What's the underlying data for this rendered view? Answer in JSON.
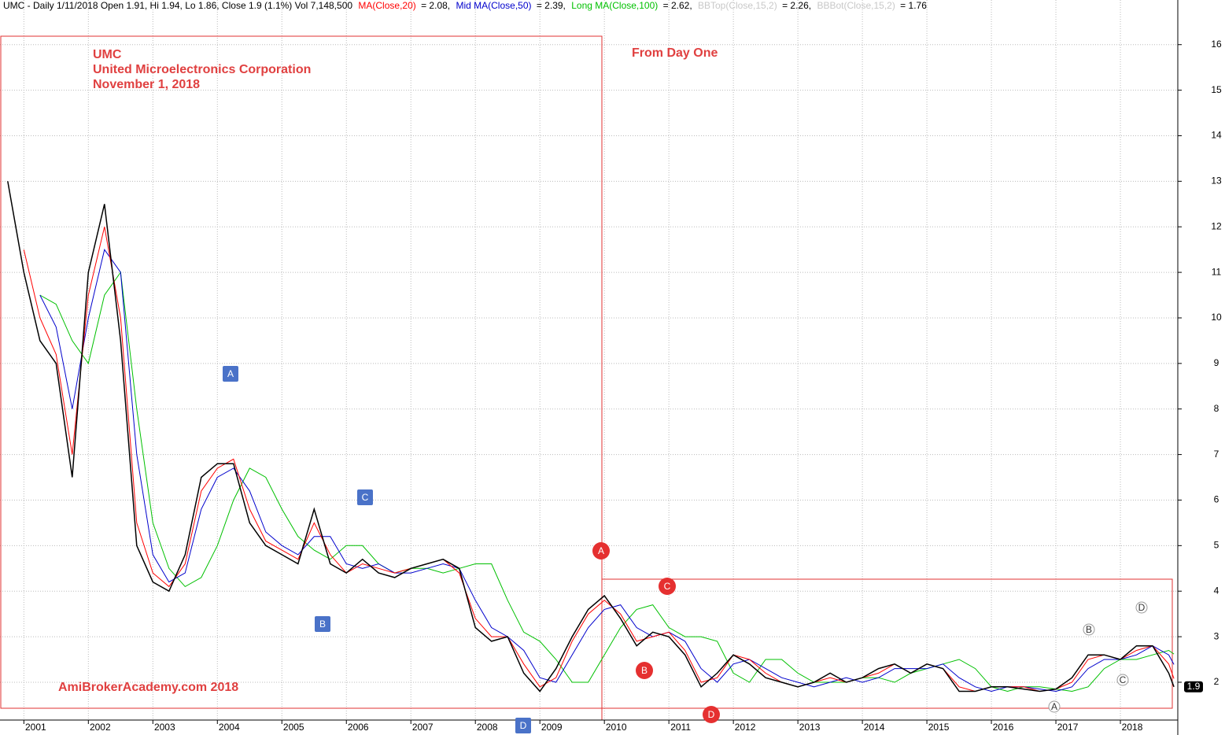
{
  "chart_data": {
    "type": "line",
    "header": "UMC - Daily 1/11/2018 Open 1.91, Hi 1.94, Lo 1.86, Close 1.9 (1.1%) Vol 7,148,500",
    "title": [
      "UMC",
      "United Microelectronics Corporation",
      "November 1, 2018"
    ],
    "subtitle": "From Day One",
    "watermark": "AmiBrokerAcademy.com  2018",
    "x": [
      2000.75,
      2001.0,
      2001.25,
      2001.5,
      2001.75,
      2002.0,
      2002.25,
      2002.5,
      2002.75,
      2003.0,
      2003.25,
      2003.5,
      2003.75,
      2004.0,
      2004.25,
      2004.5,
      2004.75,
      2005.0,
      2005.25,
      2005.5,
      2005.75,
      2006.0,
      2006.25,
      2006.5,
      2006.75,
      2007.0,
      2007.25,
      2007.5,
      2007.75,
      2008.0,
      2008.25,
      2008.5,
      2008.75,
      2009.0,
      2009.25,
      2009.5,
      2009.75,
      2010.0,
      2010.25,
      2010.5,
      2010.75,
      2011.0,
      2011.25,
      2011.5,
      2011.75,
      2012.0,
      2012.25,
      2012.5,
      2012.75,
      2013.0,
      2013.25,
      2013.5,
      2013.75,
      2014.0,
      2014.25,
      2014.5,
      2014.75,
      2015.0,
      2015.25,
      2015.5,
      2015.75,
      2016.0,
      2016.25,
      2016.5,
      2016.75,
      2017.0,
      2017.25,
      2017.5,
      2017.75,
      2018.0,
      2018.25,
      2018.5,
      2018.75,
      2018.83
    ],
    "series": [
      {
        "color": "#000000",
        "values": [
          13,
          11,
          9.5,
          9.0,
          6.5,
          11,
          12.5,
          9.5,
          5,
          4.2,
          4.0,
          4.8,
          6.5,
          6.8,
          6.8,
          5.5,
          5.0,
          4.8,
          4.6,
          5.8,
          4.6,
          4.4,
          4.7,
          4.4,
          4.3,
          4.5,
          4.6,
          4.7,
          4.5,
          3.2,
          2.9,
          3.0,
          2.2,
          1.8,
          2.3,
          3.0,
          3.6,
          3.9,
          3.4,
          2.8,
          3.1,
          3.0,
          2.6,
          1.9,
          2.2,
          2.6,
          2.4,
          2.1,
          2.0,
          1.9,
          2.0,
          2.2,
          2.0,
          2.1,
          2.3,
          2.4,
          2.2,
          2.4,
          2.3,
          1.8,
          1.8,
          1.9,
          1.9,
          1.85,
          1.8,
          1.85,
          2.1,
          2.6,
          2.6,
          2.5,
          2.8,
          2.8,
          2.2,
          1.9
        ]
      },
      {
        "name": "MA(Close,20)",
        "header_value": "= 2.08,",
        "color": "#ff0000",
        "values": [
          null,
          11.5,
          10,
          9.2,
          7,
          10.5,
          12,
          10,
          5.5,
          4.4,
          4.1,
          4.6,
          6.2,
          6.7,
          6.9,
          5.8,
          5.1,
          4.9,
          4.7,
          5.5,
          4.8,
          4.4,
          4.6,
          4.5,
          4.4,
          4.5,
          4.6,
          4.7,
          4.4,
          3.4,
          3.0,
          3.0,
          2.4,
          1.9,
          2.1,
          2.9,
          3.5,
          3.8,
          3.5,
          2.9,
          3.0,
          3.1,
          2.7,
          2.0,
          2.1,
          2.6,
          2.5,
          2.2,
          2.0,
          1.9,
          2.0,
          2.1,
          2.0,
          2.1,
          2.2,
          2.4,
          2.2,
          2.4,
          2.3,
          1.9,
          1.8,
          1.9,
          1.9,
          1.9,
          1.8,
          1.85,
          2.0,
          2.5,
          2.6,
          2.5,
          2.7,
          2.8,
          2.4,
          2.08
        ]
      },
      {
        "name": "Mid MA(Close,50)",
        "header_value": "= 2.39,",
        "color": "#0000cc",
        "values": [
          null,
          null,
          10.5,
          9.8,
          8,
          10,
          11.5,
          11,
          7,
          4.8,
          4.2,
          4.4,
          5.8,
          6.5,
          6.7,
          6.2,
          5.3,
          5.0,
          4.8,
          5.2,
          5.2,
          4.6,
          4.5,
          4.6,
          4.4,
          4.4,
          4.5,
          4.6,
          4.5,
          3.8,
          3.2,
          3.0,
          2.7,
          2.1,
          2.0,
          2.6,
          3.2,
          3.6,
          3.7,
          3.2,
          3.0,
          3.1,
          2.9,
          2.3,
          2.0,
          2.4,
          2.5,
          2.3,
          2.1,
          2.0,
          1.9,
          2.0,
          2.1,
          2.0,
          2.1,
          2.3,
          2.3,
          2.3,
          2.4,
          2.1,
          1.9,
          1.8,
          1.9,
          1.9,
          1.85,
          1.8,
          1.9,
          2.3,
          2.5,
          2.5,
          2.6,
          2.8,
          2.6,
          2.39
        ]
      },
      {
        "name": "Long MA(Close,100)",
        "header_value": "= 2.62,",
        "color": "#00c000",
        "values": [
          null,
          null,
          10.5,
          10.3,
          9.5,
          9.0,
          10.5,
          11,
          8,
          5.5,
          4.5,
          4.1,
          4.3,
          5.0,
          6.0,
          6.7,
          6.5,
          5.8,
          5.2,
          4.9,
          4.7,
          5.0,
          5.0,
          4.6,
          4.4,
          4.5,
          4.5,
          4.4,
          4.5,
          4.6,
          4.6,
          3.8,
          3.1,
          2.9,
          2.5,
          2.0,
          2.0,
          2.6,
          3.2,
          3.6,
          3.7,
          3.2,
          3.0,
          3.0,
          2.9,
          2.2,
          2.0,
          2.5,
          2.5,
          2.2,
          2.0,
          2.0,
          2.0,
          2.1,
          2.1,
          2.0,
          2.2,
          2.3,
          2.4,
          2.5,
          2.3,
          1.9,
          1.8,
          1.9,
          1.9,
          1.85,
          1.8,
          1.9,
          2.3,
          2.5,
          2.5,
          2.6,
          2.7,
          2.62
        ]
      }
    ],
    "indicators": [
      {
        "name": "BBTop(Close,15,2)",
        "header_value": "= 2.26,",
        "color": "#c8c8c8"
      },
      {
        "name": "BBBot(Close,15,2)",
        "header_value": "= 1.76",
        "color": "#c8c8c8"
      }
    ],
    "price_marker": {
      "value": 1.9,
      "label": "1.9"
    },
    "wave_labels": {
      "blue": [
        "A",
        "B",
        "C",
        "D"
      ],
      "red": [
        "A",
        "B",
        "C",
        "D"
      ],
      "small": [
        "A",
        "B",
        "C",
        "D"
      ]
    },
    "xlim": [
      2000.63,
      2018.89
    ],
    "xticks": [
      2001,
      2002,
      2003,
      2004,
      2005,
      2006,
      2007,
      2008,
      2009,
      2010,
      2011,
      2012,
      2013,
      2014,
      2015,
      2016,
      2017,
      2018
    ],
    "ylim": [
      1.17,
      16.98
    ],
    "yticks": [
      2,
      3,
      4,
      5,
      6,
      7,
      8,
      9,
      10,
      11,
      12,
      13,
      14,
      15,
      16
    ],
    "grid": true
  }
}
